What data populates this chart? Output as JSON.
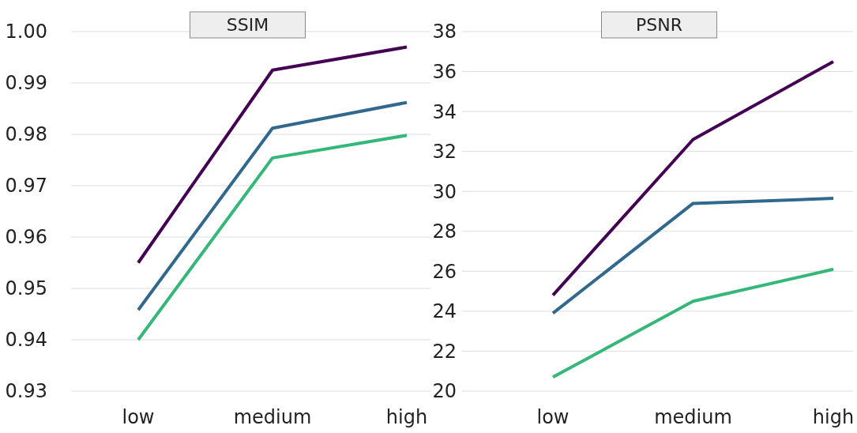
{
  "chart_data": [
    {
      "type": "line",
      "title": "SSIM",
      "categories": [
        "low",
        "medium",
        "high"
      ],
      "ylim": [
        0.93,
        1.0
      ],
      "yticks": [
        {
          "value": 0.93,
          "label": "0.93"
        },
        {
          "value": 0.94,
          "label": "0.94"
        },
        {
          "value": 0.95,
          "label": "0.95"
        },
        {
          "value": 0.96,
          "label": "0.96"
        },
        {
          "value": 0.97,
          "label": "0.97"
        },
        {
          "value": 0.98,
          "label": "0.98"
        },
        {
          "value": 0.99,
          "label": "0.99"
        },
        {
          "value": 1.0,
          "label": "1.00"
        }
      ],
      "grid": "y",
      "marker": "none",
      "line_style": "solid",
      "series": [
        {
          "color": "#440154",
          "values": [
            0.955,
            0.9925,
            0.997
          ]
        },
        {
          "color": "#31688e",
          "values": [
            0.9458,
            0.9812,
            0.9862
          ]
        },
        {
          "color": "#35b779",
          "values": [
            0.94,
            0.9754,
            0.9798
          ]
        }
      ]
    },
    {
      "type": "line",
      "title": "PSNR",
      "categories": [
        "low",
        "medium",
        "high"
      ],
      "ylim": [
        20,
        38
      ],
      "yticks": [
        20,
        22,
        24,
        26,
        28,
        30,
        32,
        34,
        36,
        38
      ],
      "grid": "y",
      "marker": "none",
      "line_style": "solid",
      "series": [
        {
          "color": "#440154",
          "values": [
            24.8,
            32.6,
            36.5
          ]
        },
        {
          "color": "#31688e",
          "values": [
            23.9,
            29.4,
            29.65
          ]
        },
        {
          "color": "#35b779",
          "values": [
            20.7,
            24.5,
            26.1
          ]
        }
      ]
    }
  ]
}
